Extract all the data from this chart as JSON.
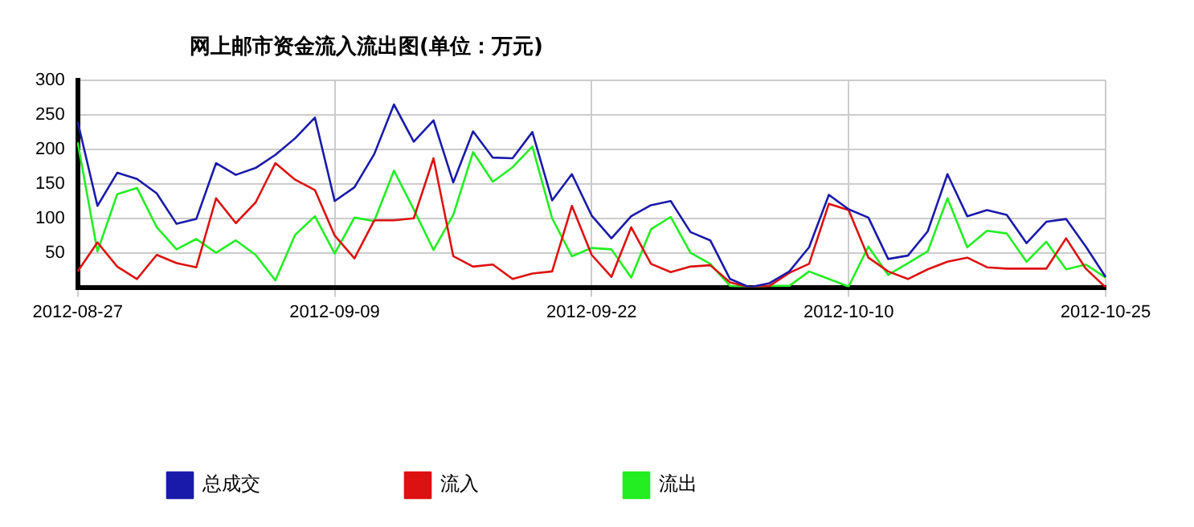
{
  "chart_data": {
    "type": "line",
    "title": "网上邮市资金流入流出图(单位：万元)",
    "categories": [
      "2012-08-27",
      null,
      null,
      null,
      null,
      null,
      null,
      null,
      null,
      null,
      null,
      null,
      null,
      "2012-09-09",
      null,
      null,
      null,
      null,
      null,
      null,
      null,
      null,
      null,
      null,
      null,
      null,
      "2012-09-22",
      null,
      null,
      null,
      null,
      null,
      null,
      null,
      null,
      null,
      null,
      null,
      null,
      "2012-10-10",
      null,
      null,
      null,
      null,
      null,
      null,
      null,
      null,
      null,
      null,
      null,
      null,
      "2012-10-25"
    ],
    "series": [
      {
        "name": "总成交",
        "color": "#1a1aaa",
        "values": [
          240,
          118,
          166,
          157,
          136,
          92,
          99,
          180,
          163,
          173,
          192,
          216,
          246,
          125,
          145,
          193,
          265,
          211,
          242,
          152,
          226,
          188,
          187,
          225,
          126,
          164,
          104,
          71,
          103,
          119,
          125,
          80,
          68,
          12,
          0,
          6,
          23,
          58,
          134,
          113,
          101,
          41,
          46,
          81,
          164,
          103,
          112,
          105,
          64,
          95,
          99,
          59,
          15
        ]
      },
      {
        "name": "流入",
        "color": "#dd1111",
        "values": [
          23,
          65,
          30,
          12,
          47,
          35,
          29,
          129,
          93,
          123,
          180,
          156,
          141,
          75,
          42,
          97,
          97,
          100,
          187,
          45,
          30,
          33,
          12,
          20,
          23,
          118,
          47,
          15,
          87,
          34,
          22,
          30,
          32,
          7,
          0,
          2,
          21,
          34,
          121,
          112,
          43,
          23,
          12,
          26,
          37,
          43,
          29,
          27,
          27,
          27,
          71,
          27,
          0
        ]
      },
      {
        "name": "流出",
        "color": "#22ee22",
        "values": [
          210,
          52,
          135,
          144,
          87,
          55,
          70,
          50,
          68,
          47,
          10,
          76,
          103,
          49,
          101,
          96,
          169,
          113,
          54,
          105,
          196,
          153,
          174,
          204,
          100,
          45,
          57,
          55,
          14,
          84,
          102,
          50,
          34,
          2,
          0,
          2,
          2,
          23,
          12,
          1,
          59,
          18,
          35,
          52,
          129,
          58,
          82,
          78,
          37,
          66,
          26,
          33,
          14
        ]
      }
    ],
    "ylim": [
      0,
      300
    ],
    "yticks": [
      50,
      100,
      150,
      200,
      250,
      300
    ],
    "grid": true,
    "legend": "bottom left",
    "marker": "none",
    "line_style": "solid"
  }
}
